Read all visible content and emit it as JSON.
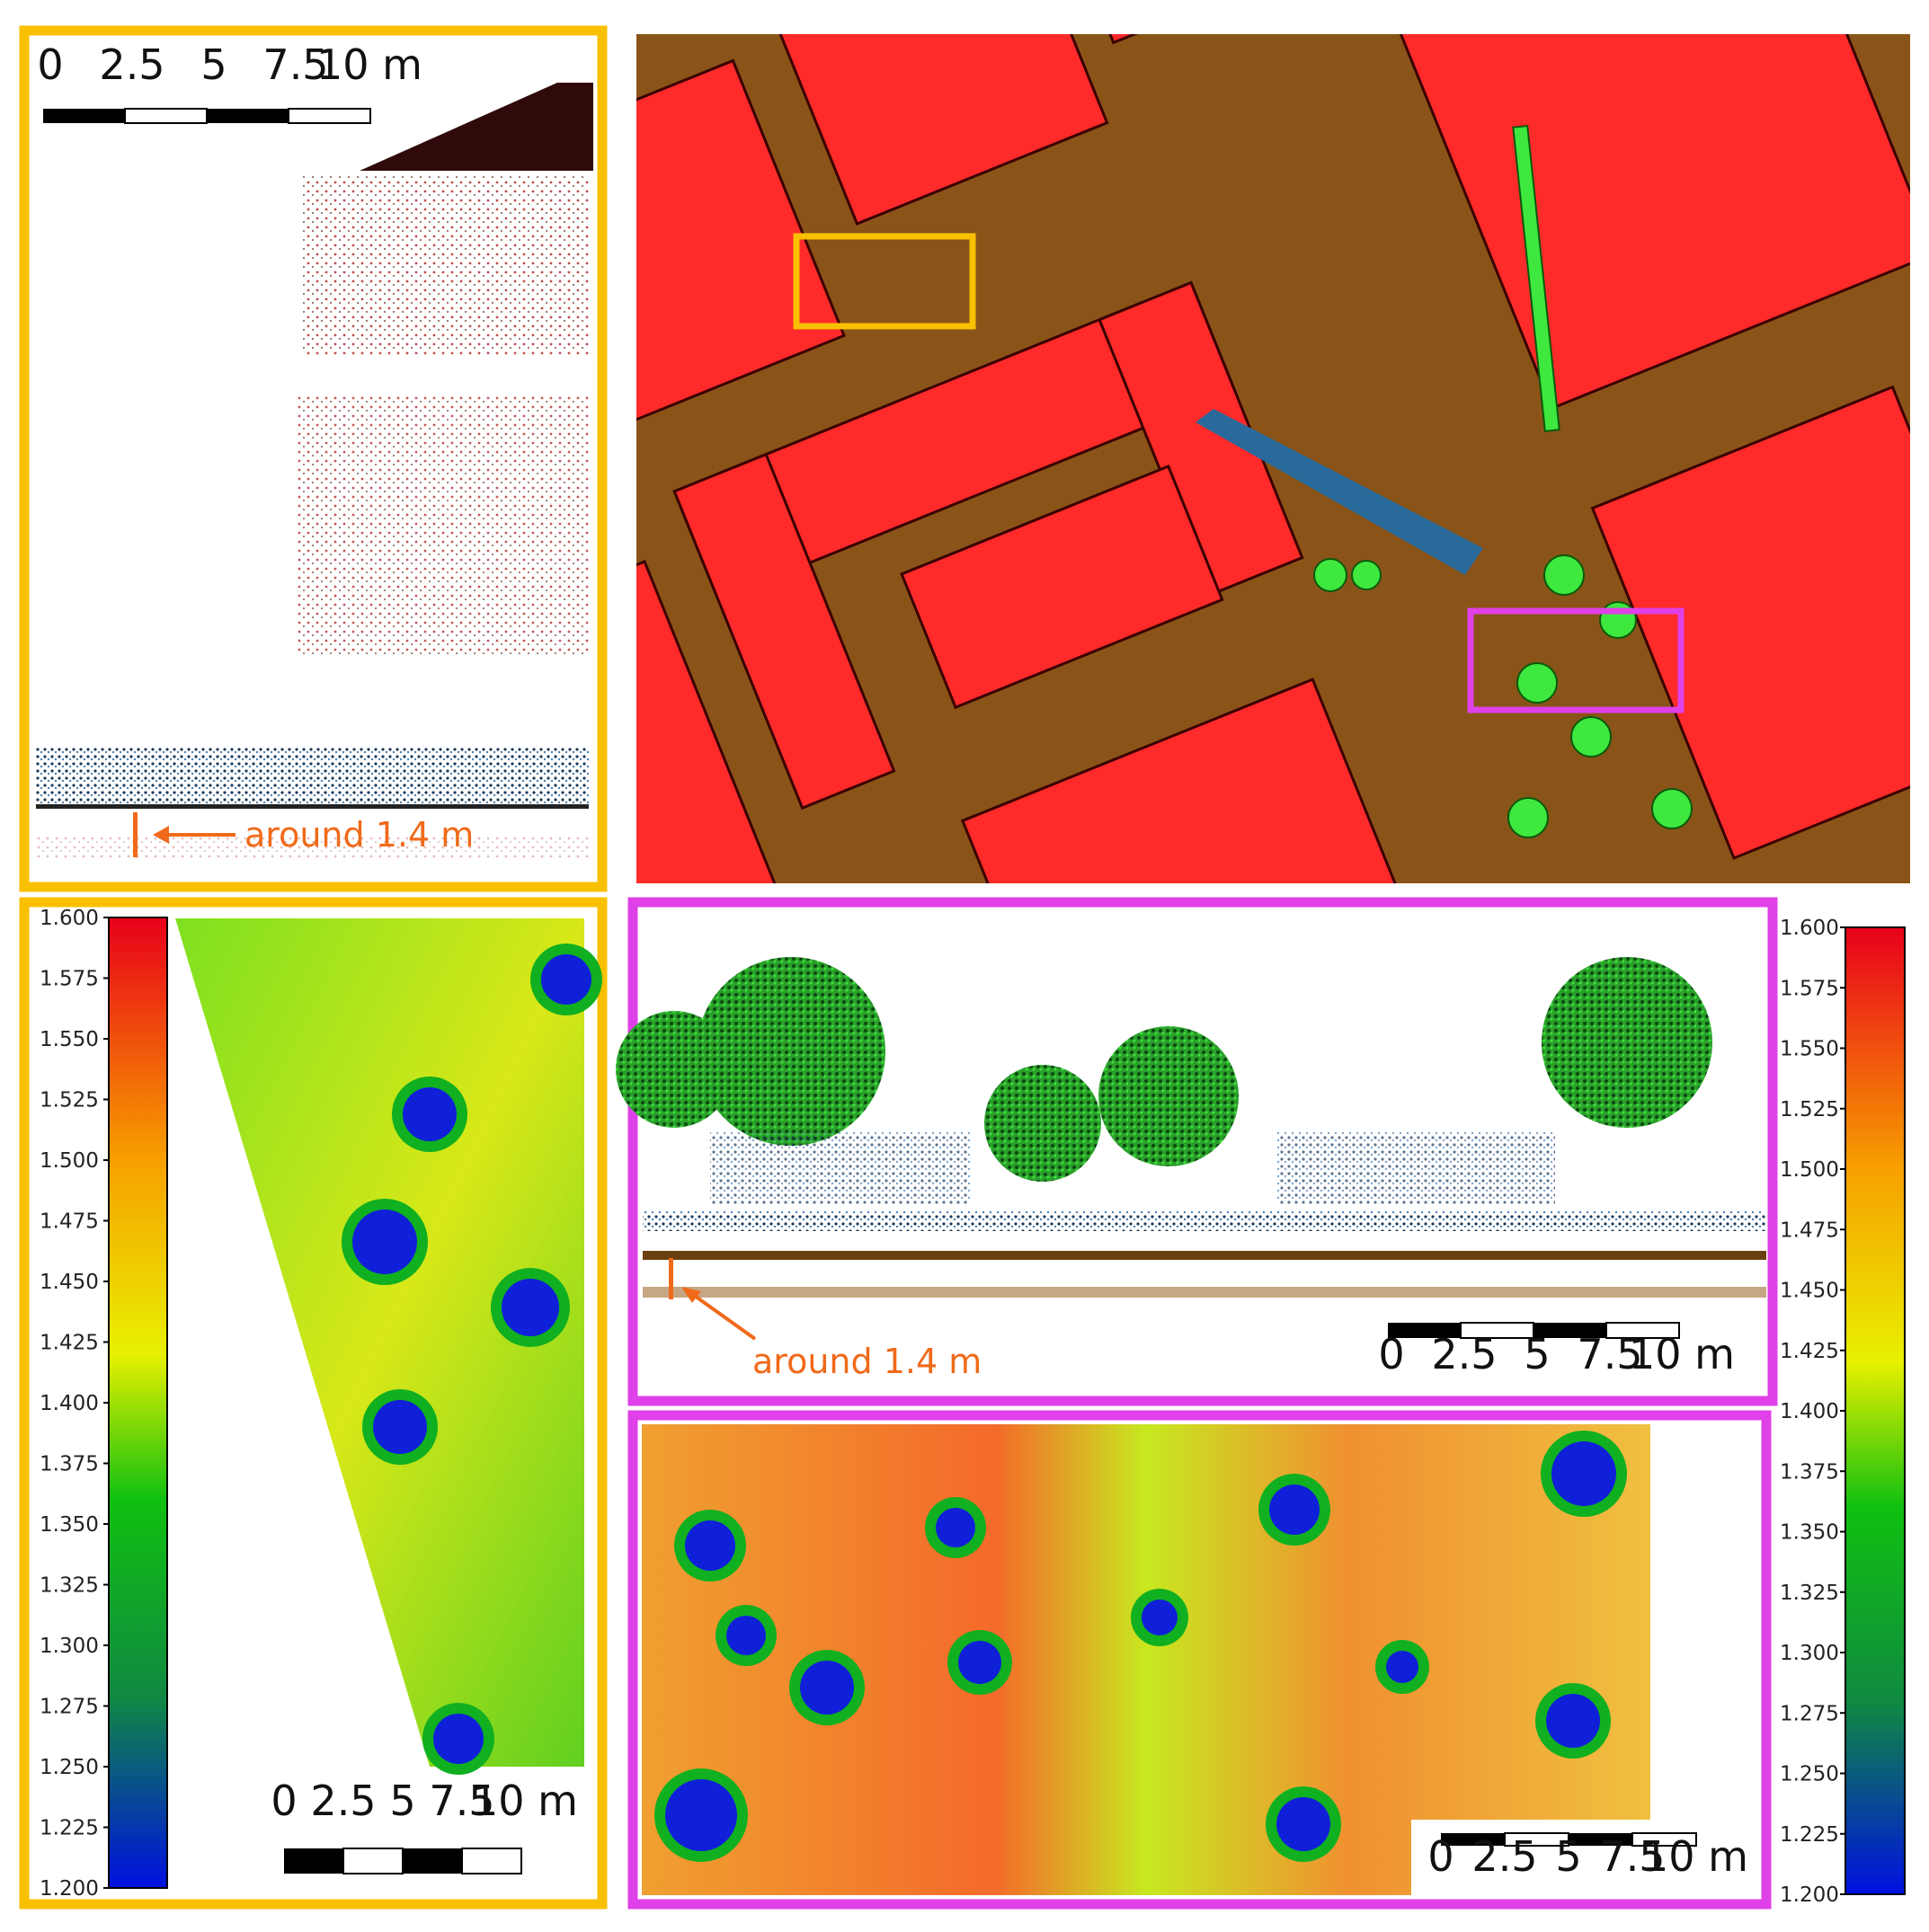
{
  "panels": {
    "side_view_left": {
      "scale_bar": [
        "0",
        "2.5",
        "5",
        "7.5",
        "10 m"
      ],
      "annotation": "around 1.4 m"
    },
    "side_view_right": {
      "scale_bar": [
        "0",
        "2.5",
        "5",
        "7.5",
        "10 m"
      ],
      "annotation": "around 1.4 m"
    },
    "height_map_left": {
      "scale_bar": [
        "0",
        "2.5",
        "5",
        "7.5",
        "10 m"
      ],
      "colorbar": {
        "lim": [
          1.2,
          1.6
        ],
        "ticks": [
          {
            "value": 1.6,
            "label": "1.600"
          },
          {
            "value": 1.575,
            "label": "1.575"
          },
          {
            "value": 1.55,
            "label": "1.550"
          },
          {
            "value": 1.525,
            "label": "1.525"
          },
          {
            "value": 1.5,
            "label": "1.500"
          },
          {
            "value": 1.475,
            "label": "1.475"
          },
          {
            "value": 1.45,
            "label": "1.450"
          },
          {
            "value": 1.425,
            "label": "1.425"
          },
          {
            "value": 1.4,
            "label": "1.400"
          },
          {
            "value": 1.375,
            "label": "1.375"
          },
          {
            "value": 1.35,
            "label": "1.350"
          },
          {
            "value": 1.325,
            "label": "1.325"
          },
          {
            "value": 1.3,
            "label": "1.300"
          },
          {
            "value": 1.275,
            "label": "1.275"
          },
          {
            "value": 1.25,
            "label": "1.250"
          },
          {
            "value": 1.225,
            "label": "1.225"
          },
          {
            "value": 1.2,
            "label": "1.200"
          }
        ]
      }
    },
    "height_map_right": {
      "scale_bar": [
        "0",
        "2.5",
        "5",
        "7.5",
        "10 m"
      ],
      "colorbar": {
        "lim": [
          1.2,
          1.6
        ],
        "ticks": [
          {
            "value": 1.6,
            "label": "1.600"
          },
          {
            "value": 1.575,
            "label": "1.575"
          },
          {
            "value": 1.55,
            "label": "1.550"
          },
          {
            "value": 1.525,
            "label": "1.525"
          },
          {
            "value": 1.5,
            "label": "1.500"
          },
          {
            "value": 1.475,
            "label": "1.475"
          },
          {
            "value": 1.45,
            "label": "1.450"
          },
          {
            "value": 1.425,
            "label": "1.425"
          },
          {
            "value": 1.4,
            "label": "1.400"
          },
          {
            "value": 1.375,
            "label": "1.375"
          },
          {
            "value": 1.35,
            "label": "1.350"
          },
          {
            "value": 1.325,
            "label": "1.325"
          },
          {
            "value": 1.3,
            "label": "1.300"
          },
          {
            "value": 1.275,
            "label": "1.275"
          },
          {
            "value": 1.25,
            "label": "1.250"
          },
          {
            "value": 1.225,
            "label": "1.225"
          },
          {
            "value": 1.2,
            "label": "1.200"
          }
        ]
      }
    }
  }
}
